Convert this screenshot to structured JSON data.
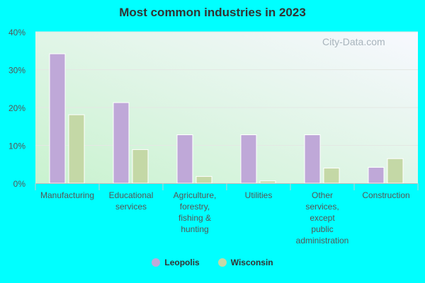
{
  "chart_data": {
    "type": "bar",
    "title": "Most common industries in 2023",
    "categories": [
      [
        "Manufacturing"
      ],
      [
        "Educational",
        "services"
      ],
      [
        "Agriculture,",
        "forestry,",
        "fishing &",
        "hunting"
      ],
      [
        "Utilities"
      ],
      [
        "Other",
        "services,",
        "except",
        "public",
        "administration"
      ],
      [
        "Construction"
      ]
    ],
    "series": [
      {
        "name": "Leopolis",
        "color": "#bfa8d8",
        "values": [
          34.2,
          21.3,
          12.8,
          12.8,
          12.8,
          4.2
        ]
      },
      {
        "name": "Wisconsin",
        "color": "#c4d8a6",
        "values": [
          18.1,
          8.9,
          1.8,
          0.6,
          4.0,
          6.5
        ]
      }
    ],
    "ylim": [
      0,
      40
    ],
    "yticks": [
      "0%",
      "10%",
      "20%",
      "30%",
      "40%"
    ],
    "grid": true,
    "legend": "bottom",
    "watermark": "City-Data.com"
  }
}
